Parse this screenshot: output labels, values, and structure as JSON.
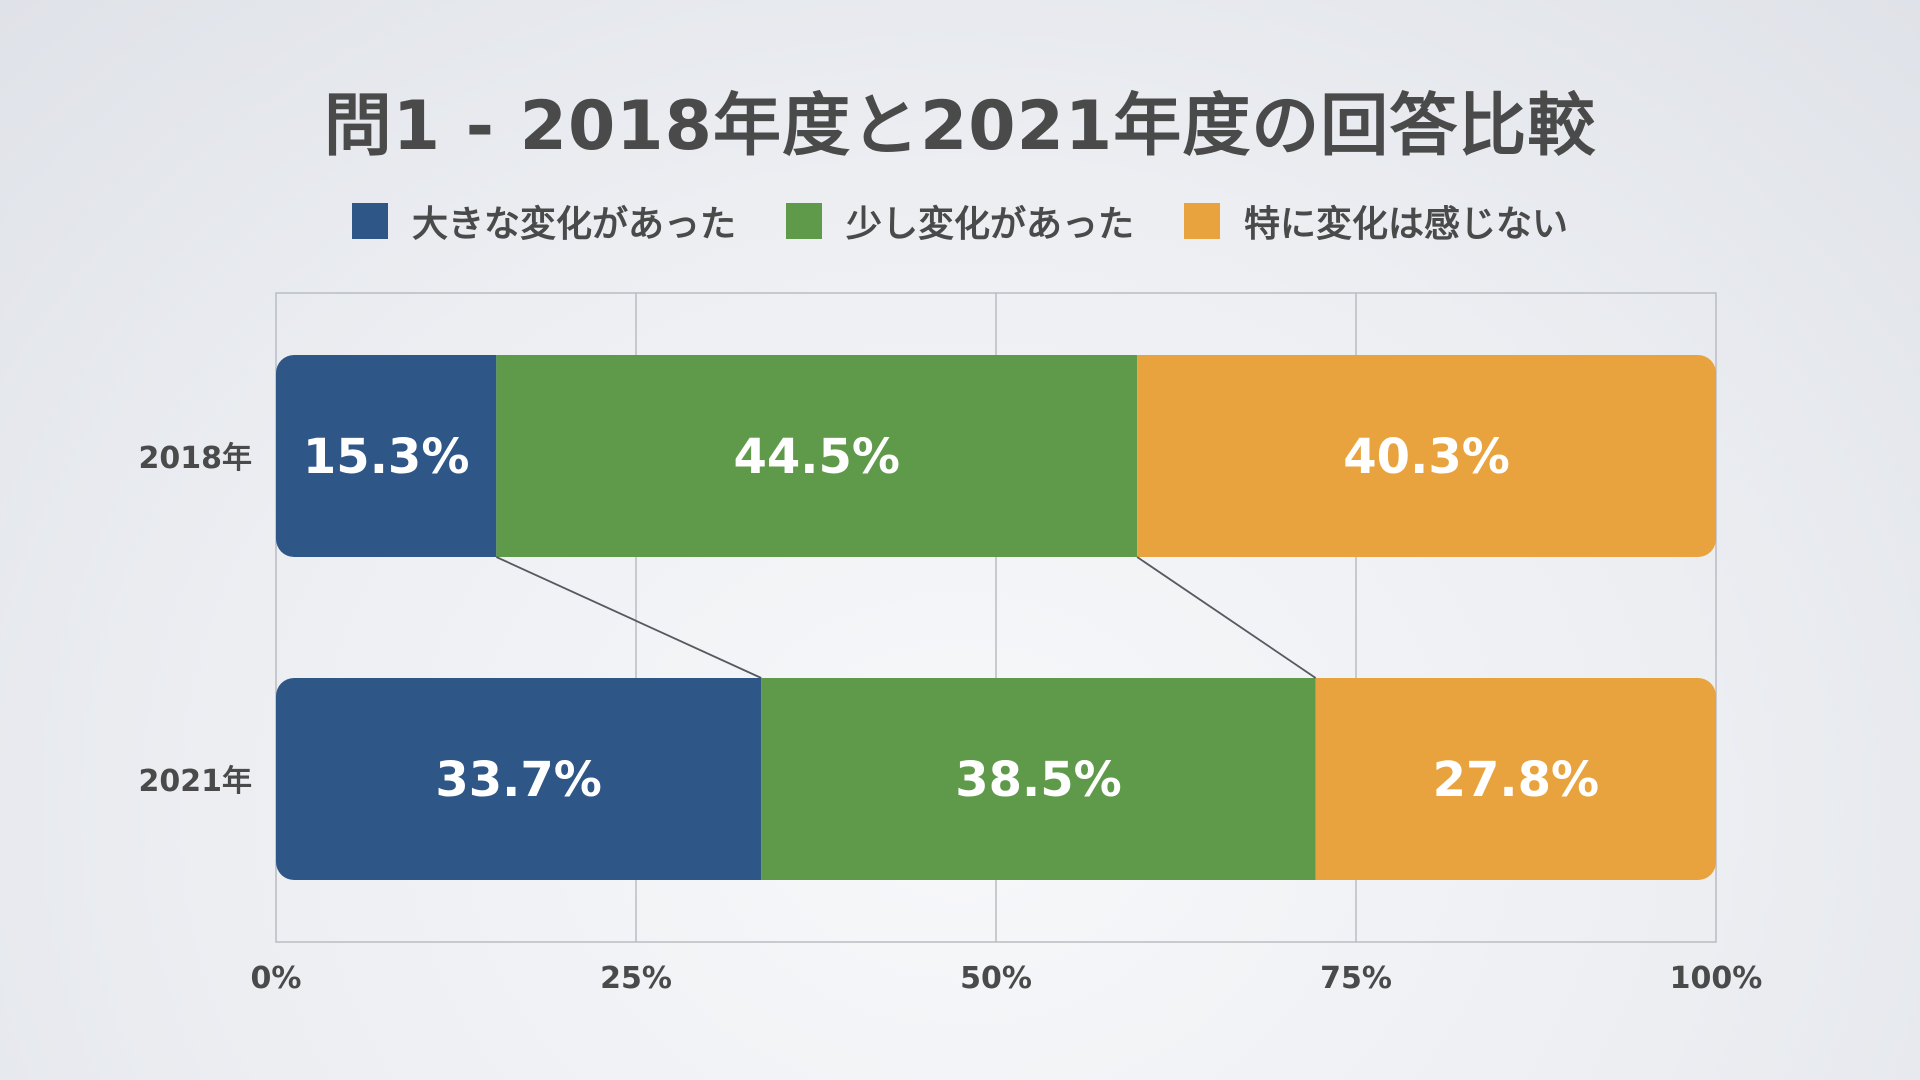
{
  "chart_data": {
    "type": "bar",
    "orientation": "horizontal",
    "stacked": "percent",
    "title": "問1 - 2018年度と2021年度の回答比較",
    "categories": [
      "2018年",
      "2021年"
    ],
    "series": [
      {
        "name": "大きな変化があった",
        "color": "#2e5788",
        "values": [
          15.3,
          33.7
        ],
        "labels": [
          "15.3%",
          "33.7%"
        ]
      },
      {
        "name": "少し変化があった",
        "color": "#5f9a4a",
        "values": [
          44.5,
          38.5
        ],
        "labels": [
          "44.5%",
          "38.5%"
        ]
      },
      {
        "name": "特に変化は感じない",
        "color": "#e8a33e",
        "values": [
          40.3,
          27.8
        ],
        "labels": [
          "40.3%",
          "27.8%"
        ]
      }
    ],
    "xlim": [
      0,
      100
    ],
    "xticks": [
      0,
      25,
      50,
      75,
      100
    ],
    "xtick_labels": [
      "0%",
      "25%",
      "50%",
      "75%",
      "100%"
    ],
    "grid": true,
    "series_lines": true,
    "legend_position": "top"
  }
}
